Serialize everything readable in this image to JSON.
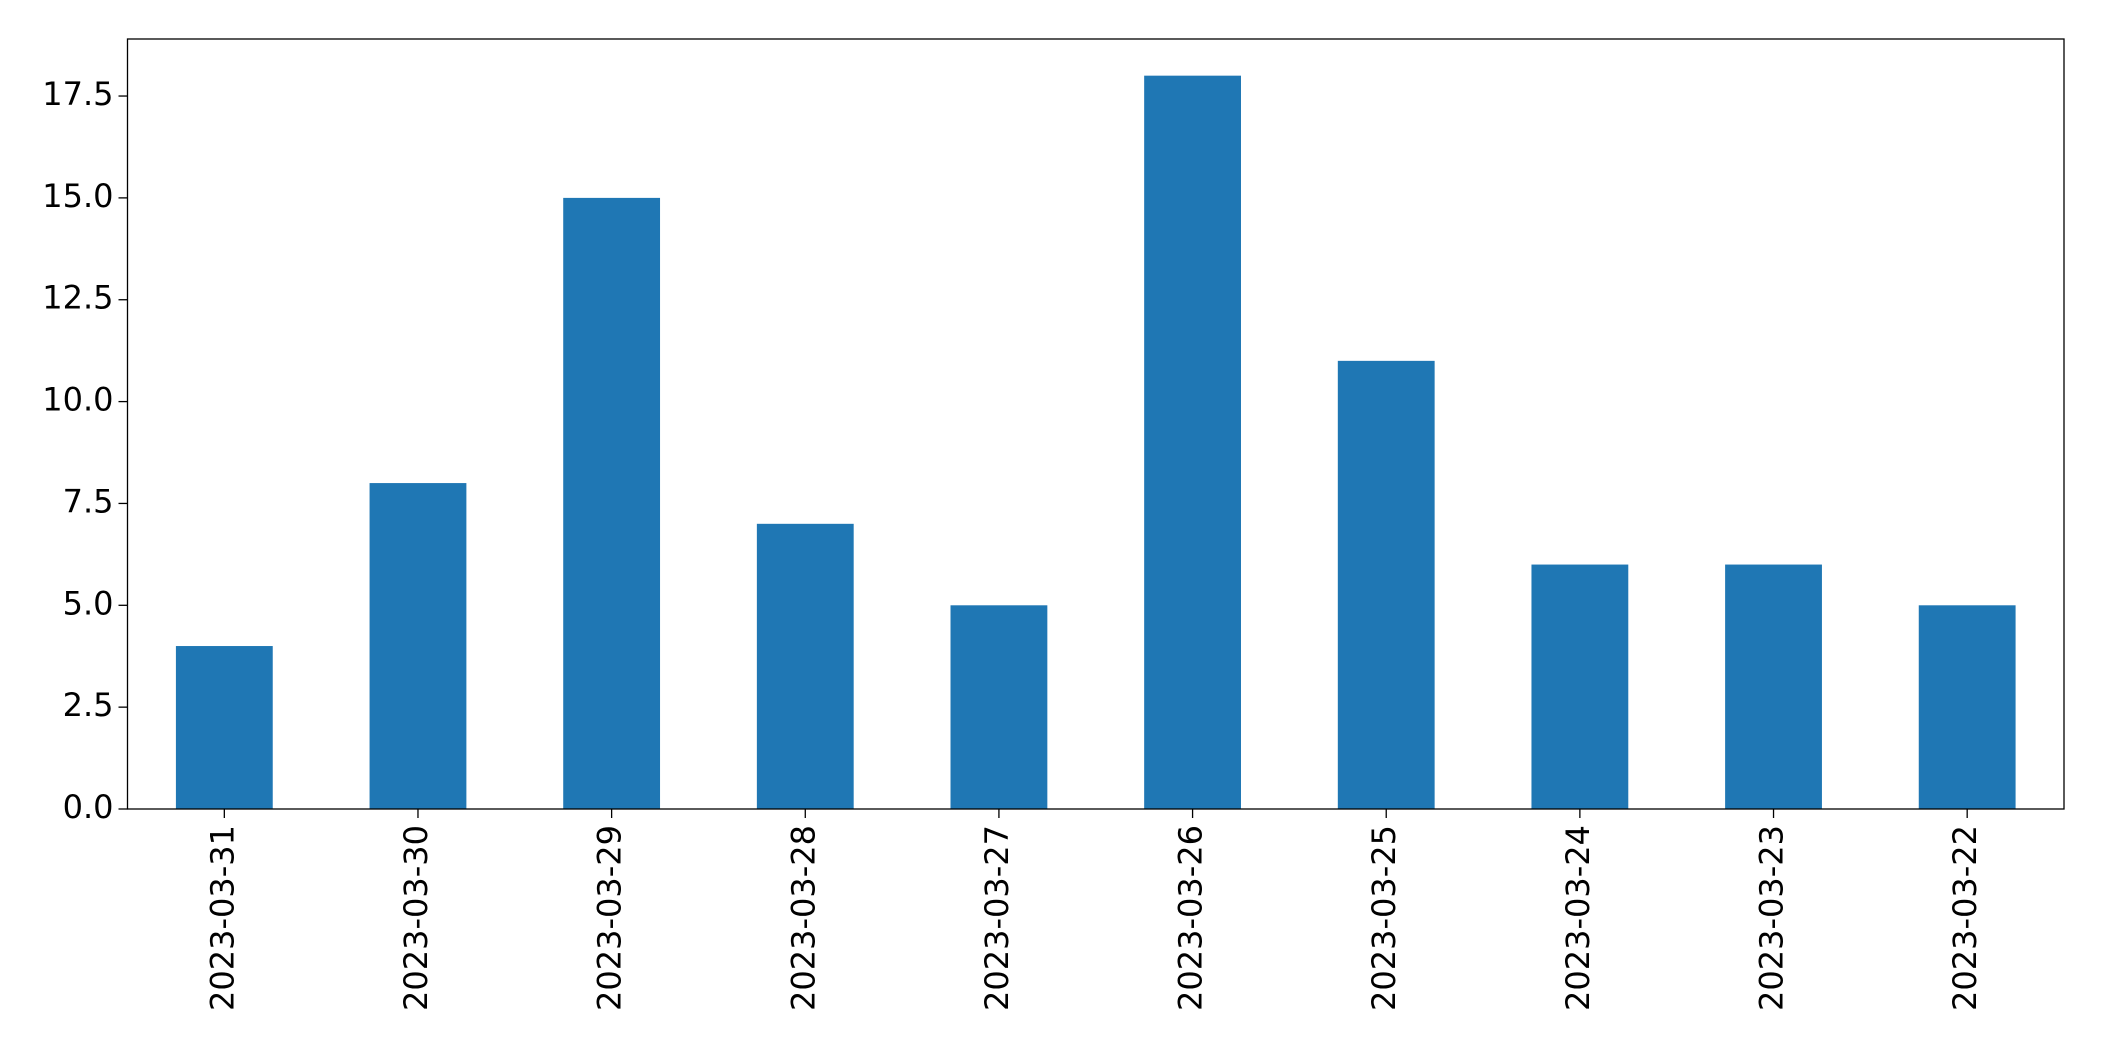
{
  "chart_data": {
    "type": "bar",
    "categories": [
      "2023-03-31",
      "2023-03-30",
      "2023-03-29",
      "2023-03-28",
      "2023-03-27",
      "2023-03-26",
      "2023-03-25",
      "2023-03-24",
      "2023-03-23",
      "2023-03-22"
    ],
    "values": [
      4,
      8,
      15,
      7,
      5,
      18,
      11,
      6,
      6,
      5
    ],
    "color": "#1f77b4",
    "ylim": [
      0,
      18.9
    ],
    "yticks": [
      {
        "value": 0,
        "label": "0.0"
      },
      2.5,
      {
        "value": 5,
        "label": "5.0"
      },
      7.5,
      {
        "value": 10,
        "label": "10.0"
      },
      12.5,
      {
        "value": 15,
        "label": "15.0"
      },
      17.5
    ],
    "grid": false
  }
}
